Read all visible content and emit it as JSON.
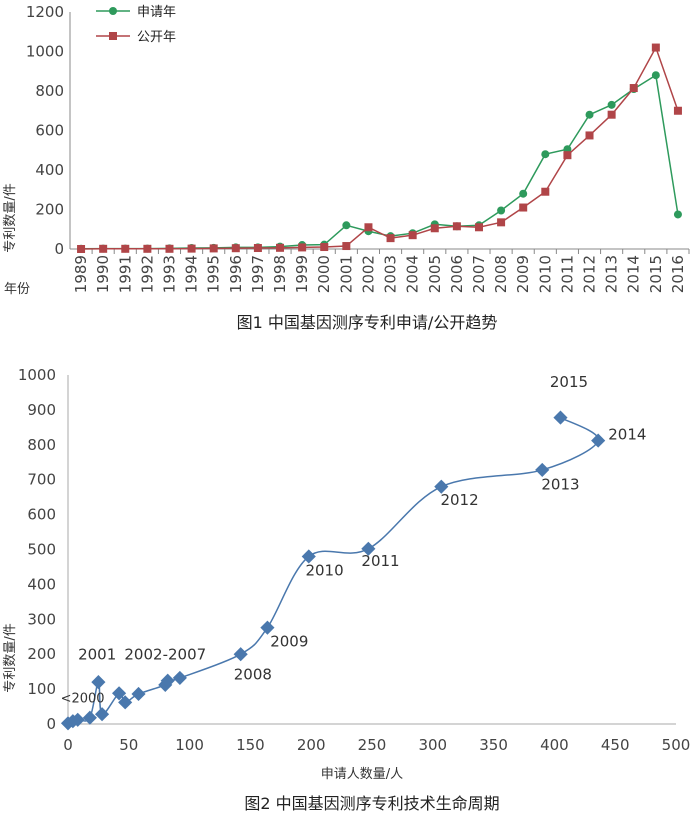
{
  "chart_data": [
    {
      "type": "line",
      "caption": "图1 中国基因测序专利申请/公开趋势",
      "ylabel": "专利数量/件",
      "xlabel": "年份",
      "ylim": [
        0,
        1200
      ],
      "yticks": [
        "0",
        "200",
        "400",
        "600",
        "800",
        "1000",
        "1200"
      ],
      "categories": [
        "1989",
        "1990",
        "1991",
        "1992",
        "1993",
        "1994",
        "1995",
        "1996",
        "1997",
        "1998",
        "1999",
        "2000",
        "2001",
        "2002",
        "2003",
        "2004",
        "2005",
        "2006",
        "2007",
        "2008",
        "2009",
        "2010",
        "2011",
        "2012",
        "2013",
        "2014",
        "2015",
        "2016"
      ],
      "legend_position": "top-left",
      "series": [
        {
          "name": "申请年",
          "color": "#2e9a5c",
          "marker": "circle",
          "values": [
            1,
            2,
            2,
            2,
            3,
            5,
            6,
            8,
            8,
            12,
            20,
            22,
            120,
            90,
            65,
            80,
            125,
            115,
            120,
            195,
            280,
            480,
            505,
            680,
            730,
            810,
            880,
            175
          ]
        },
        {
          "name": "公开年",
          "color": "#b04548",
          "marker": "square",
          "values": [
            0,
            1,
            1,
            1,
            1,
            2,
            3,
            4,
            5,
            6,
            8,
            10,
            15,
            110,
            55,
            70,
            105,
            115,
            110,
            135,
            210,
            290,
            475,
            575,
            680,
            815,
            1020,
            700
          ]
        }
      ]
    },
    {
      "type": "scatter",
      "caption": "图2 中国基因测序专利技术生命周期",
      "xlabel": "申请人数量/人",
      "ylabel": "专利数量/件",
      "xlim": [
        0,
        500
      ],
      "ylim": [
        0,
        1000
      ],
      "xticks": [
        "0",
        "50",
        "100",
        "150",
        "200",
        "250",
        "300",
        "350",
        "400",
        "450",
        "500"
      ],
      "yticks": [
        "0",
        "100",
        "200",
        "300",
        "400",
        "500",
        "600",
        "700",
        "800",
        "900",
        "1000"
      ],
      "color": "#4a78ad",
      "points": [
        {
          "x": 0,
          "y": 2
        },
        {
          "x": 4,
          "y": 8
        },
        {
          "x": 8,
          "y": 12
        },
        {
          "x": 18,
          "y": 18
        },
        {
          "x": 25,
          "y": 120
        },
        {
          "x": 28,
          "y": 28
        },
        {
          "x": 42,
          "y": 88
        },
        {
          "x": 47,
          "y": 62
        },
        {
          "x": 58,
          "y": 86
        },
        {
          "x": 80,
          "y": 112
        },
        {
          "x": 82,
          "y": 124
        },
        {
          "x": 92,
          "y": 132
        },
        {
          "x": 142,
          "y": 200
        },
        {
          "x": 164,
          "y": 276
        },
        {
          "x": 198,
          "y": 480
        },
        {
          "x": 247,
          "y": 502
        },
        {
          "x": 307,
          "y": 680
        },
        {
          "x": 390,
          "y": 728
        },
        {
          "x": 436,
          "y": 812
        },
        {
          "x": 405,
          "y": 878
        }
      ],
      "annotations": [
        {
          "text": "<2000",
          "x": 12,
          "y": 62
        },
        {
          "text": "2001",
          "x": 24,
          "y": 185
        },
        {
          "text": "2002-2007",
          "x": 80,
          "y": 185
        },
        {
          "text": "2008",
          "x": 152,
          "y": 128
        },
        {
          "text": "2009",
          "x": 182,
          "y": 222
        },
        {
          "text": "2010",
          "x": 211,
          "y": 425
        },
        {
          "text": "2011",
          "x": 257,
          "y": 453
        },
        {
          "text": "2012",
          "x": 322,
          "y": 628
        },
        {
          "text": "2013",
          "x": 405,
          "y": 672
        },
        {
          "text": "2014",
          "x": 460,
          "y": 815
        },
        {
          "text": "2015",
          "x": 412,
          "y": 965
        }
      ]
    }
  ]
}
